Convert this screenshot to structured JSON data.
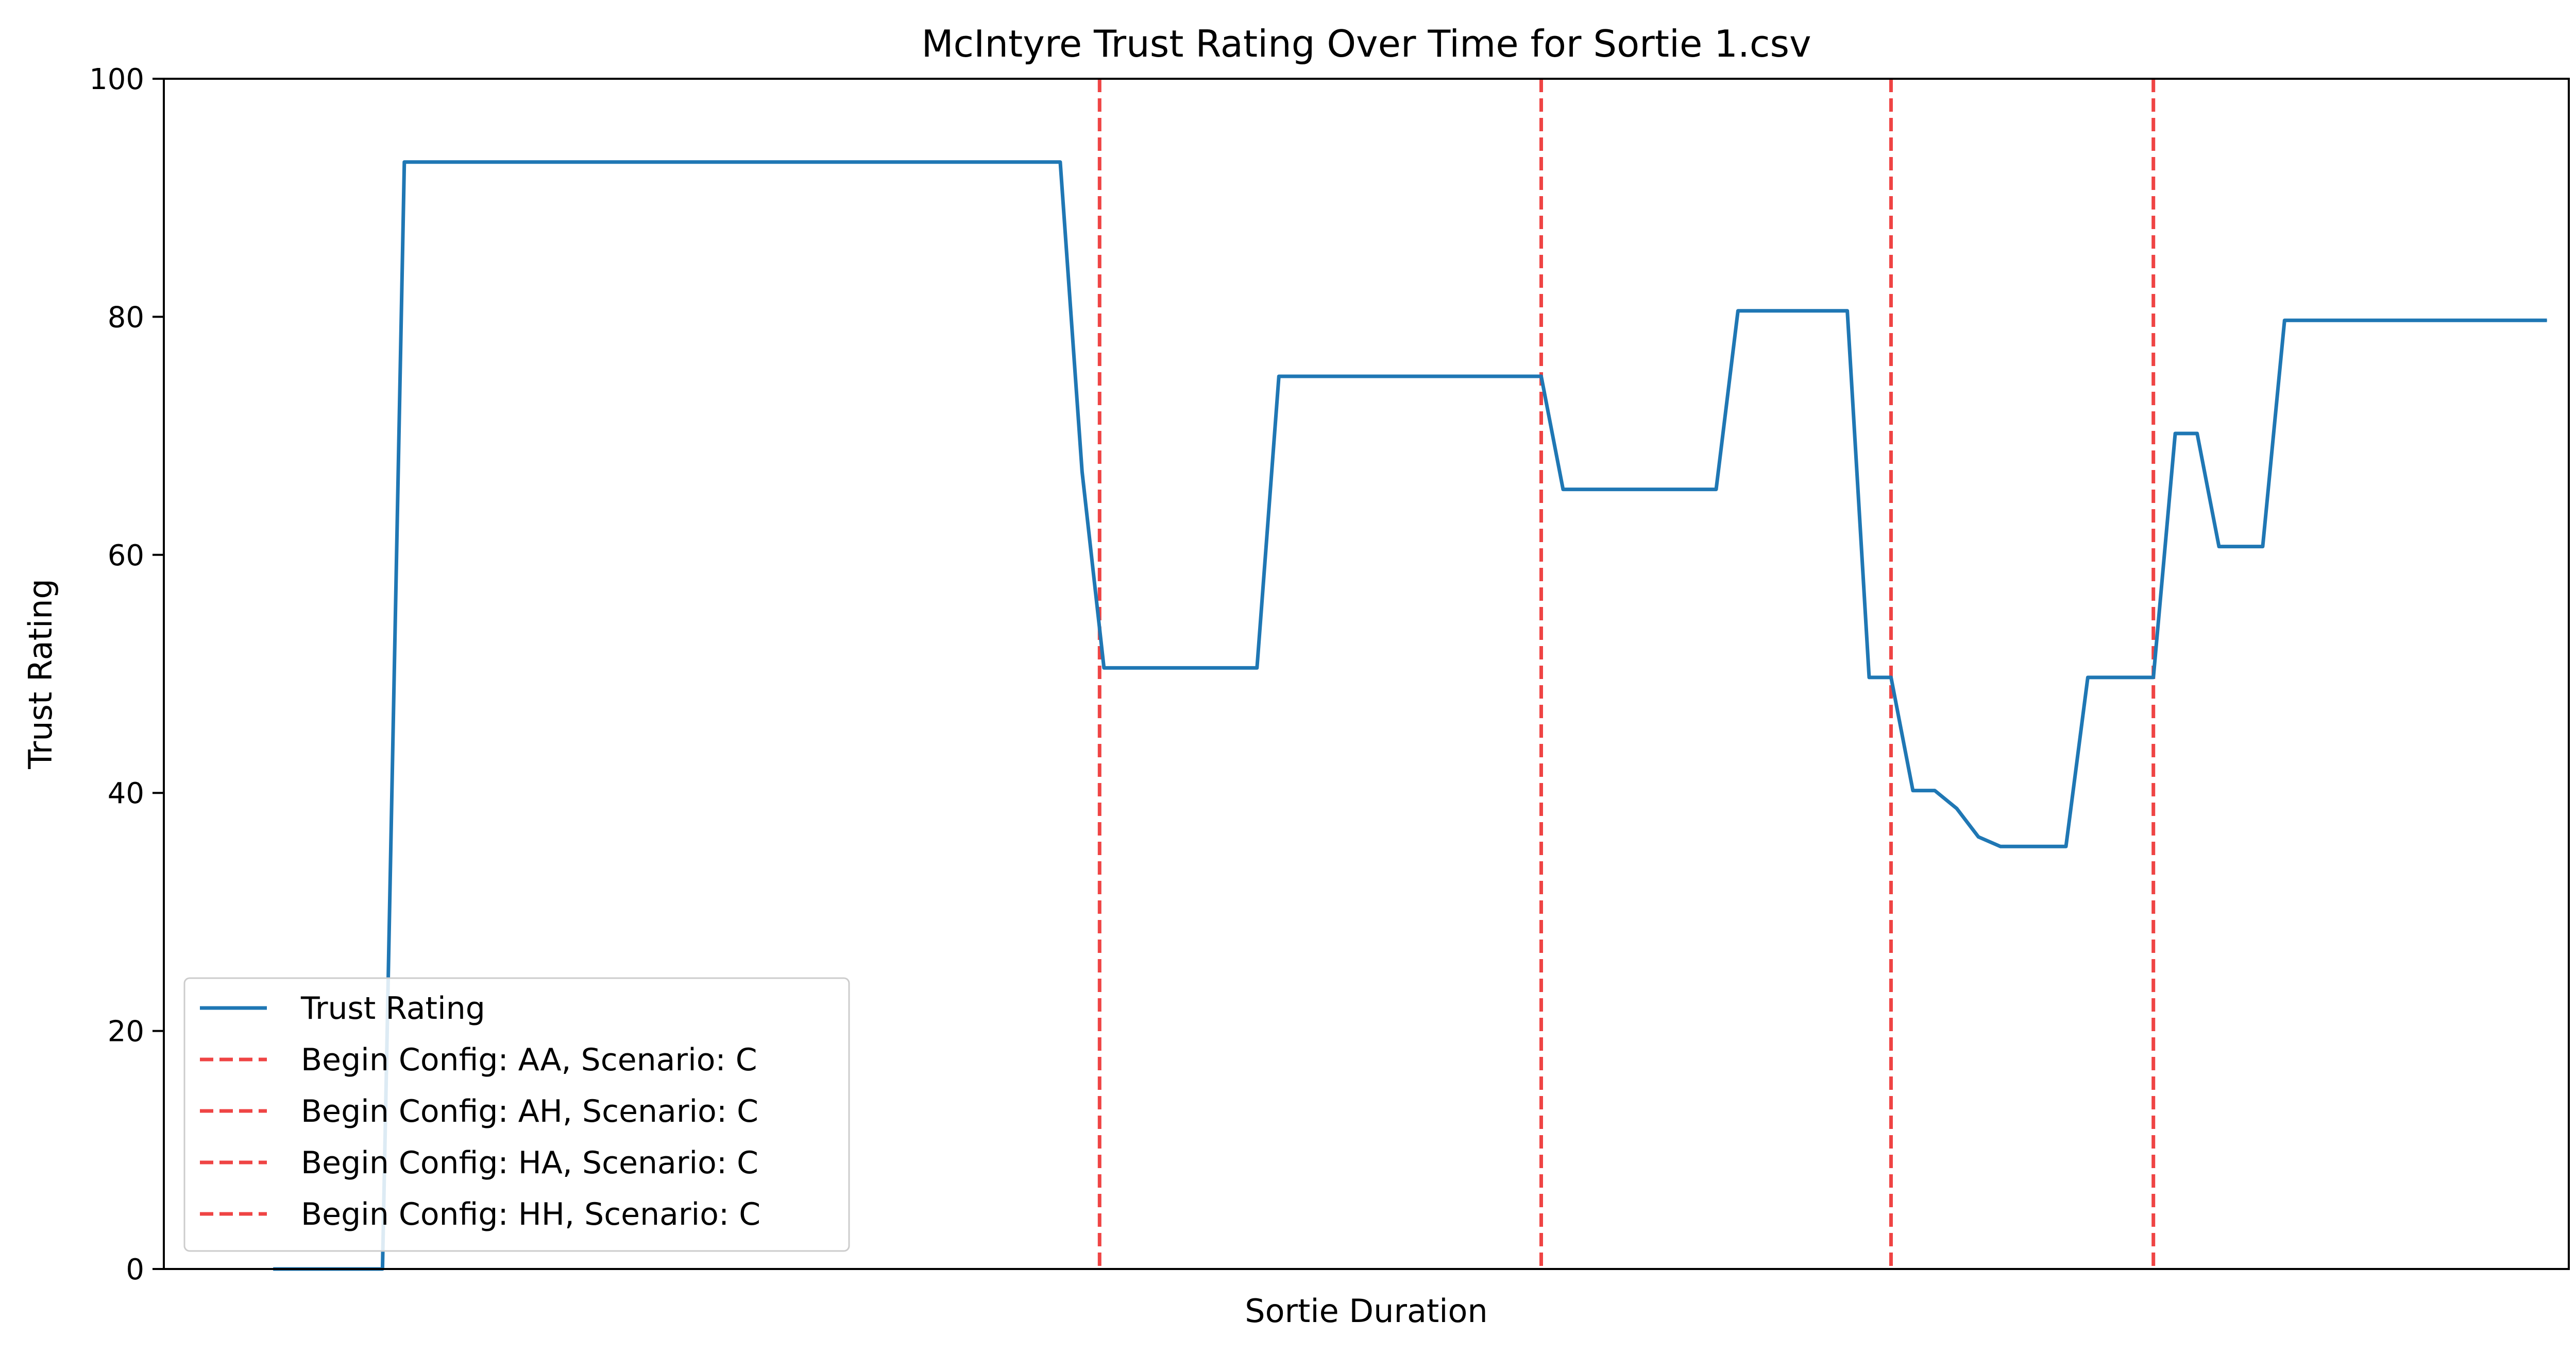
{
  "chart_data": {
    "type": "line",
    "title": "McIntyre Trust Rating Over Time for Sortie 1.csv",
    "xlabel": "Sortie Duration",
    "ylabel": "Trust Rating",
    "ylim": [
      0,
      100
    ],
    "yticks": [
      0,
      20,
      40,
      60,
      80,
      100
    ],
    "xlim": [
      -5,
      105
    ],
    "x_ticks_visible": false,
    "grid": false,
    "legend_position": "lower left",
    "series": [
      {
        "name": "Trust Rating",
        "color": "#1f77b4",
        "style": "solid",
        "points": [
          {
            "x": 0,
            "y": 0
          },
          {
            "x": 5,
            "y": 0
          },
          {
            "x": 6,
            "y": 93
          },
          {
            "x": 36,
            "y": 93
          },
          {
            "x": 37,
            "y": 67
          },
          {
            "x": 38,
            "y": 50.5
          },
          {
            "x": 45,
            "y": 50.5
          },
          {
            "x": 46,
            "y": 75
          },
          {
            "x": 58,
            "y": 75
          },
          {
            "x": 59,
            "y": 65.5
          },
          {
            "x": 66,
            "y": 65.5
          },
          {
            "x": 67,
            "y": 80.5
          },
          {
            "x": 72,
            "y": 80.5
          },
          {
            "x": 73,
            "y": 49.7
          },
          {
            "x": 74,
            "y": 49.7
          },
          {
            "x": 75,
            "y": 40.2
          },
          {
            "x": 76,
            "y": 40.2
          },
          {
            "x": 77,
            "y": 38.7
          },
          {
            "x": 78,
            "y": 36.3
          },
          {
            "x": 79,
            "y": 35.5
          },
          {
            "x": 82,
            "y": 35.5
          },
          {
            "x": 83,
            "y": 49.7
          },
          {
            "x": 86,
            "y": 49.7
          },
          {
            "x": 87,
            "y": 70.2
          },
          {
            "x": 88,
            "y": 70.2
          },
          {
            "x": 89,
            "y": 60.7
          },
          {
            "x": 91,
            "y": 60.7
          },
          {
            "x": 92,
            "y": 79.7
          },
          {
            "x": 104,
            "y": 79.7
          }
        ]
      }
    ],
    "vertical_markers": [
      {
        "name": "Begin Config: AA, Scenario: C",
        "x": 37.8,
        "color": "#ef4444",
        "style": "dashed"
      },
      {
        "name": "Begin Config: AH, Scenario: C",
        "x": 58.0,
        "color": "#ef4444",
        "style": "dashed"
      },
      {
        "name": "Begin Config: HA, Scenario: C",
        "x": 74.0,
        "color": "#ef4444",
        "style": "dashed"
      },
      {
        "name": "Begin Config: HH, Scenario: C",
        "x": 86.0,
        "color": "#ef4444",
        "style": "dashed"
      }
    ]
  }
}
